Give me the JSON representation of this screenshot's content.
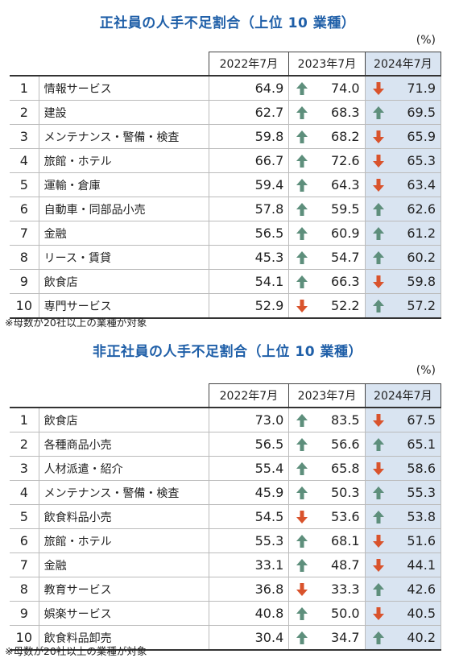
{
  "colors": {
    "title": "#1f5fa8",
    "up_arrow": "#5e8f7c",
    "down_arrow": "#d9532c",
    "highlight": "#d9e4f1"
  },
  "columns": [
    "2022年7月",
    "2023年7月",
    "2024年7月"
  ],
  "unit": "(%)",
  "note": "※母数が20社以上の業種が対象",
  "regular": {
    "title": "正社員の人手不足割合（上位 10 業種）",
    "rows": [
      {
        "rank": "1",
        "name": "情報サービス",
        "v2022": "64.9",
        "v2023": "74.0",
        "d2023": "up",
        "v2024": "71.9",
        "d2024": "down"
      },
      {
        "rank": "2",
        "name": "建設",
        "v2022": "62.7",
        "v2023": "68.3",
        "d2023": "up",
        "v2024": "69.5",
        "d2024": "up"
      },
      {
        "rank": "3",
        "name": "メンテナンス・警備・検査",
        "v2022": "59.8",
        "v2023": "68.2",
        "d2023": "up",
        "v2024": "65.9",
        "d2024": "down"
      },
      {
        "rank": "4",
        "name": "旅館・ホテル",
        "v2022": "66.7",
        "v2023": "72.6",
        "d2023": "up",
        "v2024": "65.3",
        "d2024": "down"
      },
      {
        "rank": "5",
        "name": "運輸・倉庫",
        "v2022": "59.4",
        "v2023": "64.3",
        "d2023": "up",
        "v2024": "63.4",
        "d2024": "down"
      },
      {
        "rank": "6",
        "name": "自動車・同部品小売",
        "v2022": "57.8",
        "v2023": "59.5",
        "d2023": "up",
        "v2024": "62.6",
        "d2024": "up"
      },
      {
        "rank": "7",
        "name": "金融",
        "v2022": "56.5",
        "v2023": "60.9",
        "d2023": "up",
        "v2024": "61.2",
        "d2024": "up"
      },
      {
        "rank": "8",
        "name": "リース・賃貸",
        "v2022": "45.3",
        "v2023": "54.7",
        "d2023": "up",
        "v2024": "60.2",
        "d2024": "up"
      },
      {
        "rank": "9",
        "name": "飲食店",
        "v2022": "54.1",
        "v2023": "66.3",
        "d2023": "up",
        "v2024": "59.8",
        "d2024": "down"
      },
      {
        "rank": "10",
        "name": "専門サービス",
        "v2022": "52.9",
        "v2023": "52.2",
        "d2023": "down",
        "v2024": "57.2",
        "d2024": "up"
      }
    ]
  },
  "nonregular": {
    "title": "非正社員の人手不足割合（上位 10 業種）",
    "rows": [
      {
        "rank": "1",
        "name": "飲食店",
        "v2022": "73.0",
        "v2023": "83.5",
        "d2023": "up",
        "v2024": "67.5",
        "d2024": "down"
      },
      {
        "rank": "2",
        "name": "各種商品小売",
        "v2022": "56.5",
        "v2023": "56.6",
        "d2023": "up",
        "v2024": "65.1",
        "d2024": "up"
      },
      {
        "rank": "3",
        "name": "人材派遣・紹介",
        "v2022": "55.4",
        "v2023": "65.8",
        "d2023": "up",
        "v2024": "58.6",
        "d2024": "down"
      },
      {
        "rank": "4",
        "name": "メンテナンス・警備・検査",
        "v2022": "45.9",
        "v2023": "50.3",
        "d2023": "up",
        "v2024": "55.3",
        "d2024": "up"
      },
      {
        "rank": "5",
        "name": "飲食料品小売",
        "v2022": "54.5",
        "v2023": "53.6",
        "d2023": "down",
        "v2024": "53.8",
        "d2024": "up"
      },
      {
        "rank": "6",
        "name": "旅館・ホテル",
        "v2022": "55.3",
        "v2023": "68.1",
        "d2023": "up",
        "v2024": "51.6",
        "d2024": "down"
      },
      {
        "rank": "7",
        "name": "金融",
        "v2022": "33.1",
        "v2023": "48.7",
        "d2023": "up",
        "v2024": "44.1",
        "d2024": "down"
      },
      {
        "rank": "8",
        "name": "教育サービス",
        "v2022": "36.8",
        "v2023": "33.3",
        "d2023": "down",
        "v2024": "42.6",
        "d2024": "up"
      },
      {
        "rank": "9",
        "name": "娯楽サービス",
        "v2022": "40.8",
        "v2023": "50.0",
        "d2023": "up",
        "v2024": "40.5",
        "d2024": "down"
      },
      {
        "rank": "10",
        "name": "飲食料品卸売",
        "v2022": "30.4",
        "v2023": "34.7",
        "d2023": "up",
        "v2024": "40.2",
        "d2024": "up"
      }
    ]
  }
}
